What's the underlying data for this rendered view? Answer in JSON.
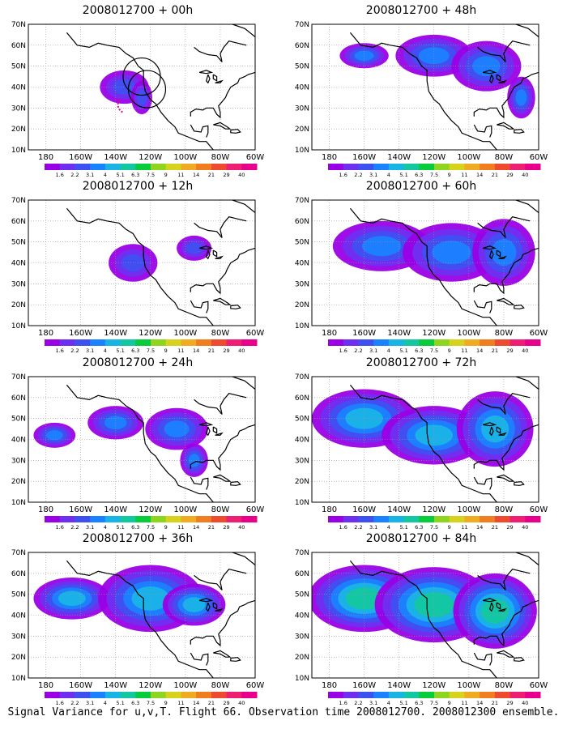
{
  "panels": [
    {
      "title": "2008012700 + 00h",
      "intensity": 1,
      "spread": 0
    },
    {
      "title": "2008012700 + 48h",
      "intensity": 2,
      "spread": 3
    },
    {
      "title": "2008012700 + 12h",
      "intensity": 1,
      "spread": 1
    },
    {
      "title": "2008012700 + 60h",
      "intensity": 2,
      "spread": 4
    },
    {
      "title": "2008012700 + 24h",
      "intensity": 2,
      "spread": 2
    },
    {
      "title": "2008012700 + 72h",
      "intensity": 3,
      "spread": 4
    },
    {
      "title": "2008012700 + 36h",
      "intensity": 3,
      "spread": 3
    },
    {
      "title": "2008012700 + 84h",
      "intensity": 4,
      "spread": 5
    }
  ],
  "axes": {
    "lat_labels": [
      "70N",
      "60N",
      "50N",
      "40N",
      "30N",
      "20N",
      "10N"
    ],
    "lon_labels": [
      "180",
      "160W",
      "140W",
      "120W",
      "100W",
      "80W",
      "60W"
    ]
  },
  "colorbar": {
    "labels": [
      "1.6",
      "2.2",
      "3.1",
      "4",
      "5.1",
      "6.3",
      "7.5",
      "9",
      "11",
      "14",
      "21",
      "29",
      "40"
    ],
    "colors": [
      "#9a00e6",
      "#6f2ff0",
      "#3f50f0",
      "#1b82ff",
      "#19b4e6",
      "#13c8a0",
      "#09cc3c",
      "#8ed51f",
      "#d7d21c",
      "#f0ab23",
      "#f07d20",
      "#ee4a30",
      "#ee1f73",
      "#e8008c"
    ]
  },
  "footer": "Signal Variance for u,v,T. Flight 66. Observation time 2008012700. 2008012300 ensemble."
}
